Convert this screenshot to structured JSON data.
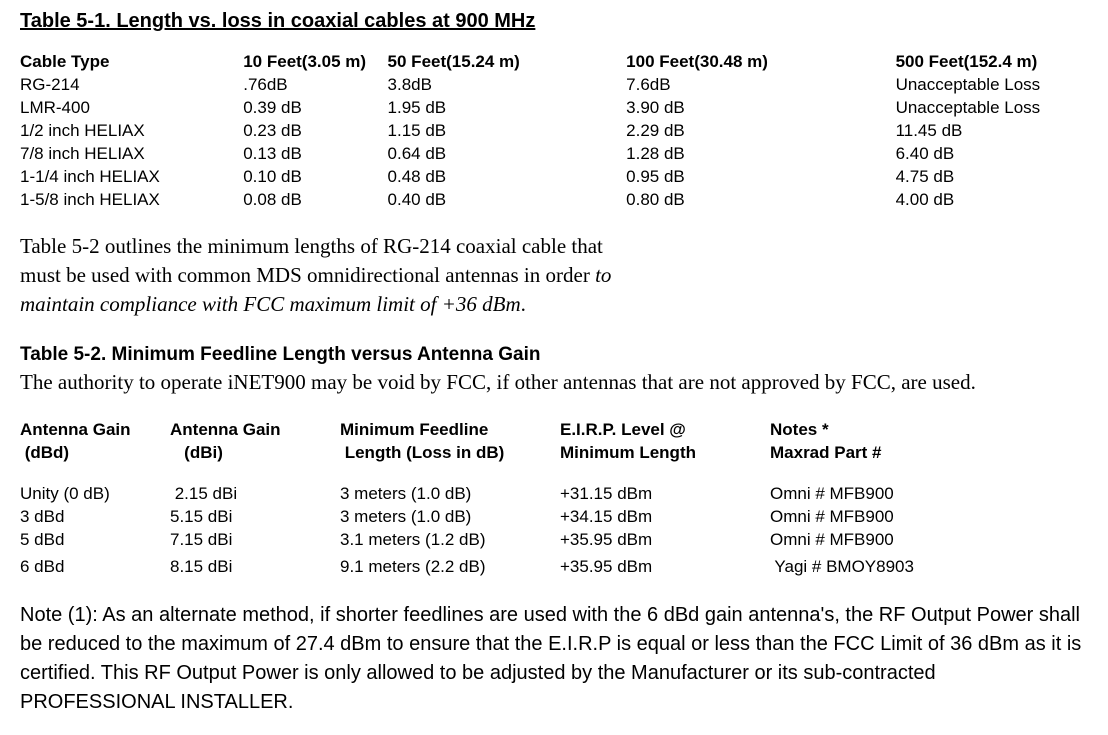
{
  "table1": {
    "title": "Table 5-1. Length vs. loss in coaxial cables at 900 MHz",
    "headers": [
      "Cable Type",
      "10 Feet(3.05 m)",
      "50 Feet(15.24 m)",
      "100 Feet(30.48 m)",
      "500 Feet(152.4 m)"
    ],
    "rows": [
      [
        "RG-214",
        ".76dB",
        "3.8dB",
        "7.6dB",
        "Unacceptable Loss"
      ],
      [
        "LMR-400",
        " 0.39 dB",
        "1.95 dB",
        "3.90 dB",
        "Unacceptable Loss"
      ],
      [
        "1/2 inch HELIAX",
        "0.23 dB",
        "1.15 dB",
        "2.29 dB",
        "11.45 dB"
      ],
      [
        "7/8 inch HELIAX",
        "0.13 dB",
        "0.64 dB",
        "1.28 dB",
        "6.40 dB"
      ],
      [
        "1-1/4 inch HELIAX",
        " 0.10 dB",
        "0.48 dB",
        "0.95 dB",
        "4.75 dB"
      ],
      [
        "1-5/8 inch HELIAX",
        "0.08 dB",
        "0.40 dB",
        "0.80 dB",
        "4.00 dB"
      ]
    ]
  },
  "para1": {
    "line1": "Table 5-2 outlines the minimum lengths of RG-214 coaxial cable that",
    "line2": "must be used with common MDS omnidirectional antennas in order ",
    "line2_italic": "to",
    "line3_italic": "maintain compliance with FCC maximum limit of +36 dBm",
    "line3_end": "."
  },
  "table2": {
    "title": "Table 5-2. Minimum Feedline Length versus Antenna Gain",
    "subtitle": "The authority to operate iNET900 may be void by FCC, if other antennas that are not approved by FCC, are used.",
    "headers_row1": [
      "Antenna Gain",
      "Antenna Gain",
      "Minimum Feedline",
      "E.I.R.P. Level @",
      "Notes *"
    ],
    "headers_row2": [
      " (dBd)",
      "   (dBi)",
      " Length (Loss in dB)",
      "Minimum Length",
      "Maxrad Part #"
    ],
    "rows": [
      [
        "Unity (0 dB)",
        " 2.15 dBi",
        "3 meters (1.0 dB)",
        "+31.15 dBm",
        "Omni # MFB900"
      ],
      [
        "3 dBd",
        "5.15 dBi",
        "3 meters (1.0 dB)",
        "+34.15 dBm",
        "Omni # MFB900"
      ],
      [
        "5 dBd",
        "7.15 dBi",
        "3.1 meters (1.2 dB)",
        "+35.95 dBm",
        "Omni # MFB900"
      ],
      [
        "6 dBd",
        "8.15 dBi",
        "9.1 meters (2.2 dB)",
        "+35.95 dBm",
        " Yagi # BMOY8903"
      ]
    ]
  },
  "note": "Note (1): As an alternate method, if shorter feedlines are used with the 6 dBd gain antenna's, the RF Output Power shall be reduced to the maximum of 27.4 dBm to ensure that the E.I.R.P is equal or less than the FCC Limit of 36 dBm as it is certified. This RF Output Power is only allowed to be adjusted by the Manufacturer or its sub-contracted PROFESSIONAL INSTALLER."
}
